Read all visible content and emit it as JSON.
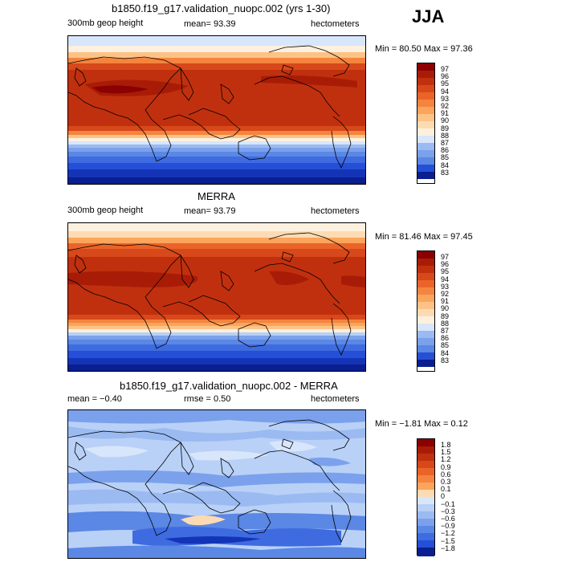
{
  "season": "JJA",
  "colors": {
    "warm": [
      "#8b0000",
      "#a81c07",
      "#c1300e",
      "#d7481a",
      "#ea6429",
      "#f5843e",
      "#fba45b",
      "#fdc286",
      "#fddbb2",
      "#fdf0de"
    ],
    "cool": [
      "#d8e6fb",
      "#b9d1f7",
      "#9bbaf2",
      "#7ba1ec",
      "#5b87e5",
      "#3e6be0",
      "#254fd6",
      "#1434b8",
      "#0a1e8f"
    ]
  },
  "panels": [
    {
      "title": "b1850.f19_g17.validation_nuopc.002 (yrs 1-30)",
      "left_text": "300mb geop height",
      "mid_text": "mean=   93.39",
      "right_text": "hectometers",
      "minmax": "Min =   80.50  Max =   97.36",
      "colorbar_labels": [
        "97",
        "96",
        "95",
        "94",
        "93",
        "92",
        "91",
        "90",
        "89",
        "88",
        "87",
        "86",
        "85",
        "84",
        "83"
      ]
    },
    {
      "title": "MERRA",
      "left_text": "300mb geop height",
      "mid_text": "mean=   93.79",
      "right_text": "hectometers",
      "minmax": "Min =   81.46  Max =   97.45",
      "colorbar_labels": [
        "97",
        "96",
        "95",
        "94",
        "93",
        "92",
        "91",
        "90",
        "89",
        "88",
        "87",
        "86",
        "85",
        "84",
        "83"
      ]
    },
    {
      "title": "b1850.f19_g17.validation_nuopc.002 - MERRA",
      "left_text": "mean =   −0.40",
      "mid_text": "rmse =    0.50",
      "right_text": "hectometers",
      "minmax": "Min =  −1.81  Max =    0.12",
      "colorbar_labels": [
        "1.8",
        "1.5",
        "1.2",
        "0.9",
        "0.6",
        "0.3",
        "0.1",
        "0",
        "−0.1",
        "−0.3",
        "−0.6",
        "−0.9",
        "−1.2",
        "−1.5",
        "−1.8"
      ]
    }
  ]
}
